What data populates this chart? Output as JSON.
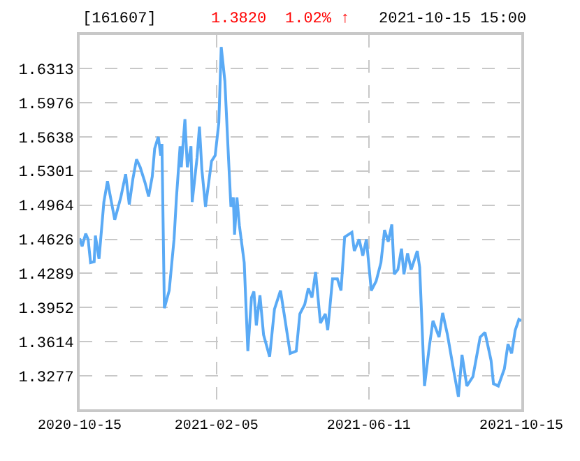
{
  "chart_data": {
    "type": "line",
    "title": "[161607]",
    "annotations": [
      "1.3820",
      "1.02% ↑",
      "2021-10-15 15:00"
    ],
    "x": [
      "2020-10-15",
      "2020-10-17",
      "2020-10-20",
      "2020-10-22",
      "2020-10-24",
      "2020-10-27",
      "2020-10-28",
      "2020-10-31",
      "2020-11-04",
      "2020-11-07",
      "2020-11-13",
      "2020-11-18",
      "2020-11-22",
      "2020-11-25",
      "2020-11-28",
      "2020-12-01",
      "2020-12-04",
      "2020-12-08",
      "2020-12-11",
      "2020-12-14",
      "2020-12-16",
      "2020-12-19",
      "2020-12-21",
      "2020-12-22",
      "2020-12-24",
      "2020-12-28",
      "2021-01-01",
      "2021-01-03",
      "2021-01-06",
      "2021-01-07",
      "2021-01-10",
      "2021-01-12",
      "2021-01-15",
      "2021-01-16",
      "2021-01-20",
      "2021-01-22",
      "2021-01-24",
      "2021-01-27",
      "2021-02-01",
      "2021-02-04",
      "2021-02-07",
      "2021-02-09",
      "2021-02-12",
      "2021-02-15",
      "2021-02-17",
      "2021-02-19",
      "2021-02-20",
      "2021-02-22",
      "2021-02-24",
      "2021-02-28",
      "2021-03-03",
      "2021-03-06",
      "2021-03-08",
      "2021-03-10",
      "2021-03-13",
      "2021-03-16",
      "2021-03-21",
      "2021-03-25",
      "2021-03-30",
      "2021-04-02",
      "2021-04-07",
      "2021-04-12",
      "2021-04-15",
      "2021-04-19",
      "2021-04-22",
      "2021-04-25",
      "2021-04-28",
      "2021-05-02",
      "2021-05-06",
      "2021-05-08",
      "2021-05-12",
      "2021-05-16",
      "2021-05-19",
      "2021-05-22",
      "2021-05-28",
      "2021-05-30",
      "2021-06-03",
      "2021-06-06",
      "2021-06-09",
      "2021-06-13",
      "2021-06-17",
      "2021-06-21",
      "2021-06-24",
      "2021-06-27",
      "2021-06-30",
      "2021-07-02",
      "2021-07-05",
      "2021-07-08",
      "2021-07-10",
      "2021-07-13",
      "2021-07-16",
      "2021-07-21",
      "2021-07-23",
      "2021-07-27",
      "2021-07-31",
      "2021-08-03",
      "2021-08-08",
      "2021-08-11",
      "2021-08-15",
      "2021-08-20",
      "2021-08-24",
      "2021-08-27",
      "2021-08-31",
      "2021-09-05",
      "2021-09-11",
      "2021-09-15",
      "2021-09-20",
      "2021-09-22",
      "2021-09-26",
      "2021-10-01",
      "2021-10-04",
      "2021-10-07",
      "2021-10-10",
      "2021-10-13",
      "2021-10-15"
    ],
    "series": [
      {
        "color": "#5aaaf5",
        "values": [
          1.4634,
          1.4556,
          1.468,
          1.4625,
          1.4395,
          1.4404,
          1.4662,
          1.4432,
          1.4993,
          1.52,
          1.4818,
          1.5039,
          1.5269,
          1.497,
          1.5223,
          1.5416,
          1.5338,
          1.5186,
          1.5048,
          1.5246,
          1.5522,
          1.5637,
          1.5453,
          1.5568,
          1.3944,
          1.4119,
          1.4625,
          1.5039,
          1.5545,
          1.5338,
          1.5812,
          1.5338,
          1.5545,
          1.4993,
          1.543,
          1.5738,
          1.5315,
          1.4947,
          1.5398,
          1.5453,
          1.5775,
          1.6525,
          1.6189,
          1.543,
          1.4947,
          1.5039,
          1.4671,
          1.5039,
          1.4763,
          1.4395,
          1.3521,
          1.405,
          1.411,
          1.3774,
          1.4073,
          1.3682,
          1.3466,
          1.3935,
          1.4119,
          1.3889,
          1.3498,
          1.3521,
          1.3889,
          1.3981,
          1.4142,
          1.405,
          1.4303,
          1.3797,
          1.3889,
          1.3728,
          1.4234,
          1.4234,
          1.4119,
          1.4648,
          1.4694,
          1.451,
          1.4625,
          1.4464,
          1.4625,
          1.4119,
          1.4211,
          1.4395,
          1.4717,
          1.4602,
          1.4772,
          1.428,
          1.4326,
          1.4533,
          1.428,
          1.4487,
          1.4326,
          1.451,
          1.4349,
          1.3176,
          1.3567,
          1.382,
          1.3659,
          1.3898,
          1.3682,
          1.3337,
          1.307,
          1.3484,
          1.3176,
          1.3268,
          1.3659,
          1.3705,
          1.3429,
          1.3199,
          1.3176,
          1.3346,
          1.359,
          1.3498,
          1.3728,
          1.3834,
          1.382
        ]
      }
    ],
    "xlim": [
      "2020-10-15",
      "2021-10-15"
    ],
    "xticks": [
      "2020-10-15",
      "2021-02-05",
      "2021-06-11",
      "2021-10-15"
    ],
    "ylim": [
      1.2946,
      1.6644
    ],
    "yticks": [
      1.3277,
      1.3614,
      1.3952,
      1.4289,
      1.4626,
      1.4964,
      1.5301,
      1.5638,
      1.5976,
      1.6313
    ],
    "grid": true,
    "line_style": "solid",
    "marker": "none"
  }
}
